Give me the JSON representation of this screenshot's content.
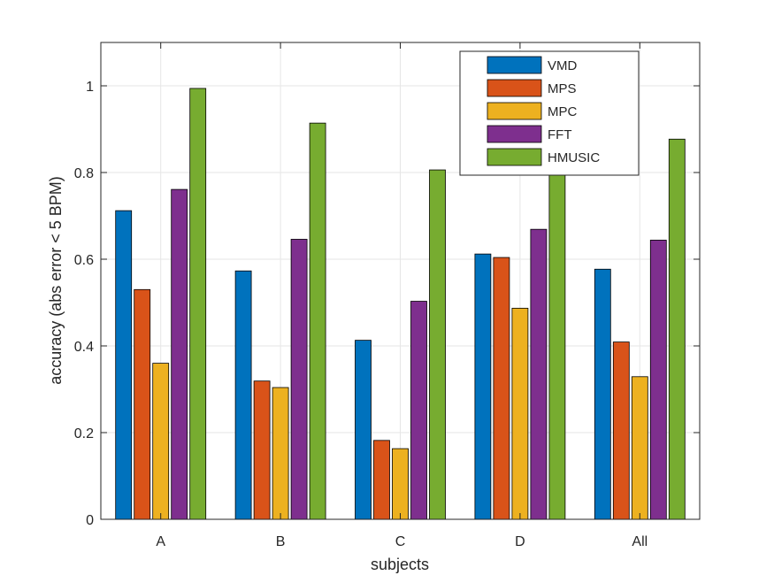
{
  "chart_data": {
    "type": "bar",
    "title": "",
    "xlabel": "subjects",
    "ylabel": "accuracy (abs error < 5 BPM)",
    "categories": [
      "A",
      "B",
      "C",
      "D",
      "All"
    ],
    "ylim": [
      0,
      1.1
    ],
    "yticks": [
      "0",
      "0.2",
      "0.4",
      "0.6",
      "0.8",
      "1"
    ],
    "grid": true,
    "legend_position": "top-right",
    "series": [
      {
        "name": "VMD",
        "color": "#0072BD",
        "values": [
          0.712,
          0.573,
          0.413,
          0.612,
          0.577
        ]
      },
      {
        "name": "MPS",
        "color": "#D95319",
        "values": [
          0.53,
          0.319,
          0.182,
          0.604,
          0.409
        ]
      },
      {
        "name": "MPC",
        "color": "#EDB120",
        "values": [
          0.36,
          0.304,
          0.163,
          0.487,
          0.329
        ]
      },
      {
        "name": "FFT",
        "color": "#7E2F8E",
        "values": [
          0.761,
          0.646,
          0.503,
          0.669,
          0.644
        ]
      },
      {
        "name": "HMUSIC",
        "color": "#77AC30",
        "values": [
          0.994,
          0.914,
          0.806,
          0.796,
          0.877
        ]
      }
    ]
  }
}
